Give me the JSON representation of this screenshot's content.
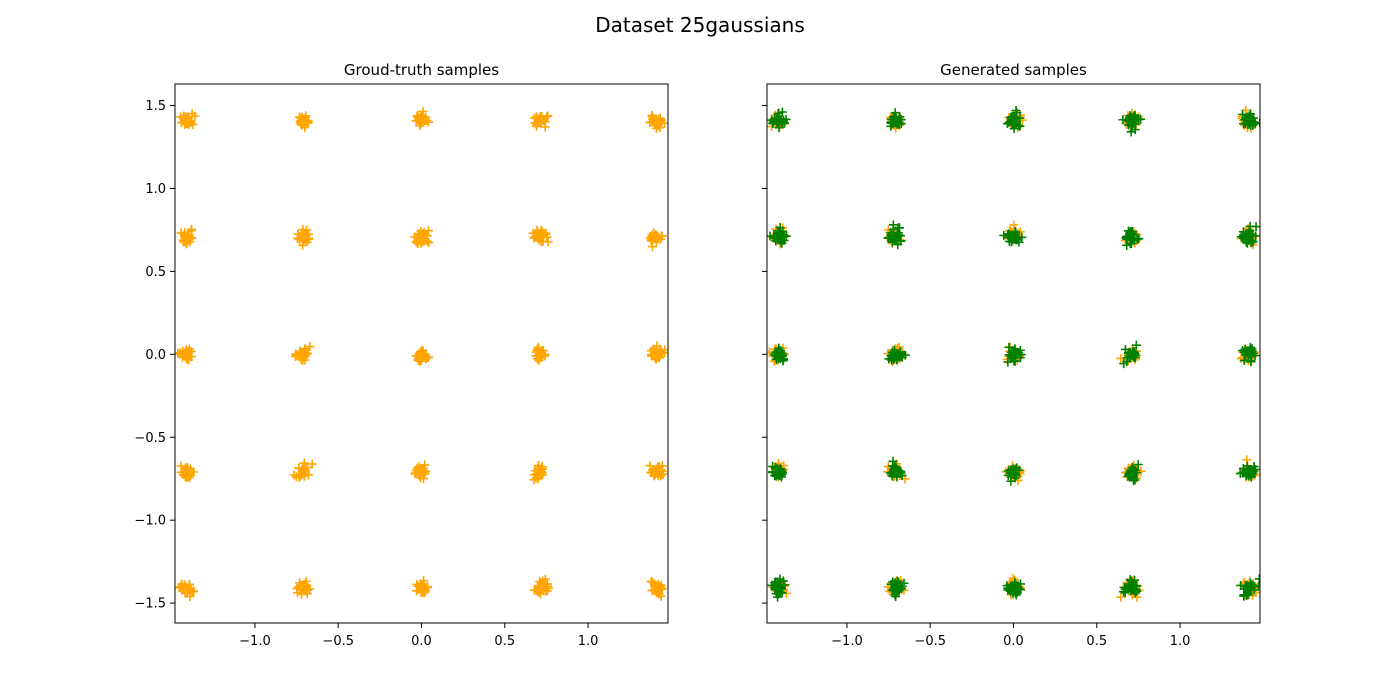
{
  "figure": {
    "title": "Dataset 25gaussians"
  },
  "chart_data": [
    {
      "type": "scatter",
      "title": "Groud-truth samples",
      "xlabel": "",
      "ylabel": "",
      "xlim": [
        -1.48,
        1.48
      ],
      "ylim": [
        -1.62,
        1.63
      ],
      "xticks": [
        -1.0,
        -0.5,
        0.0,
        0.5,
        1.0
      ],
      "xtick_labels": [
        "−1.0",
        "−0.5",
        "0.0",
        "0.5",
        "1.0"
      ],
      "yticks": [
        -1.5,
        -1.0,
        -0.5,
        0.0,
        0.5,
        1.0,
        1.5
      ],
      "ytick_labels": [
        "−1.5",
        "−1.0",
        "−0.5",
        "0.0",
        "0.5",
        "1.0",
        "1.5"
      ],
      "show_ytick_labels": true,
      "grid": false,
      "marker": "+",
      "series": [
        {
          "color": "#ffa500",
          "cluster_centers": [
            [
              -1.41,
              -1.41
            ],
            [
              -0.71,
              -1.41
            ],
            [
              0.0,
              -1.41
            ],
            [
              0.71,
              -1.41
            ],
            [
              1.41,
              -1.41
            ],
            [
              -1.41,
              -0.71
            ],
            [
              -0.71,
              -0.71
            ],
            [
              0.0,
              -0.71
            ],
            [
              0.71,
              -0.71
            ],
            [
              1.41,
              -0.71
            ],
            [
              -1.41,
              0.0
            ],
            [
              -0.71,
              0.0
            ],
            [
              0.0,
              0.0
            ],
            [
              0.71,
              0.0
            ],
            [
              1.41,
              0.0
            ],
            [
              -1.41,
              0.71
            ],
            [
              -0.71,
              0.71
            ],
            [
              0.0,
              0.71
            ],
            [
              0.71,
              0.71
            ],
            [
              1.41,
              0.71
            ],
            [
              -1.41,
              1.41
            ],
            [
              -0.71,
              1.41
            ],
            [
              0.0,
              1.41
            ],
            [
              0.71,
              1.41
            ],
            [
              1.41,
              1.41
            ]
          ],
          "cluster_std": 0.02
        }
      ]
    },
    {
      "type": "scatter",
      "title": "Generated samples",
      "xlabel": "",
      "ylabel": "",
      "xlim": [
        -1.48,
        1.48
      ],
      "ylim": [
        -1.62,
        1.63
      ],
      "xticks": [
        -1.0,
        -0.5,
        0.0,
        0.5,
        1.0
      ],
      "xtick_labels": [
        "−1.0",
        "−0.5",
        "0.0",
        "0.5",
        "1.0"
      ],
      "yticks": [
        -1.5,
        -1.0,
        -0.5,
        0.0,
        0.5,
        1.0,
        1.5
      ],
      "ytick_labels": [],
      "show_ytick_labels": false,
      "grid": false,
      "marker": "+",
      "series": [
        {
          "color": "#ffa500",
          "cluster_centers": [
            [
              -1.41,
              -1.41
            ],
            [
              -0.71,
              -1.41
            ],
            [
              0.0,
              -1.41
            ],
            [
              0.71,
              -1.41
            ],
            [
              1.41,
              -1.41
            ],
            [
              -1.41,
              -0.71
            ],
            [
              -0.71,
              -0.71
            ],
            [
              0.0,
              -0.71
            ],
            [
              0.71,
              -0.71
            ],
            [
              1.41,
              -0.71
            ],
            [
              -1.41,
              0.0
            ],
            [
              -0.71,
              0.0
            ],
            [
              0.0,
              0.0
            ],
            [
              0.71,
              0.0
            ],
            [
              1.41,
              0.0
            ],
            [
              -1.41,
              0.71
            ],
            [
              -0.71,
              0.71
            ],
            [
              0.0,
              0.71
            ],
            [
              0.71,
              0.71
            ],
            [
              1.41,
              0.71
            ],
            [
              -1.41,
              1.41
            ],
            [
              -0.71,
              1.41
            ],
            [
              0.0,
              1.41
            ],
            [
              0.71,
              1.41
            ],
            [
              1.41,
              1.41
            ]
          ],
          "cluster_std": 0.02
        },
        {
          "color": "#008000",
          "cluster_centers": [
            [
              -1.41,
              -1.41
            ],
            [
              -0.71,
              -1.41
            ],
            [
              0.0,
              -1.41
            ],
            [
              0.71,
              -1.41
            ],
            [
              1.41,
              -1.41
            ],
            [
              -1.41,
              -0.71
            ],
            [
              -0.71,
              -0.71
            ],
            [
              0.0,
              -0.71
            ],
            [
              0.71,
              -0.71
            ],
            [
              1.41,
              -0.71
            ],
            [
              -1.41,
              0.0
            ],
            [
              -0.71,
              0.0
            ],
            [
              0.0,
              0.0
            ],
            [
              0.71,
              0.0
            ],
            [
              1.41,
              0.0
            ],
            [
              -1.41,
              0.71
            ],
            [
              -0.71,
              0.71
            ],
            [
              0.0,
              0.71
            ],
            [
              0.71,
              0.71
            ],
            [
              1.41,
              0.71
            ],
            [
              -1.41,
              1.41
            ],
            [
              -0.71,
              1.41
            ],
            [
              0.0,
              1.41
            ],
            [
              0.71,
              1.41
            ],
            [
              1.41,
              1.41
            ]
          ],
          "cluster_std": 0.02
        }
      ]
    }
  ]
}
